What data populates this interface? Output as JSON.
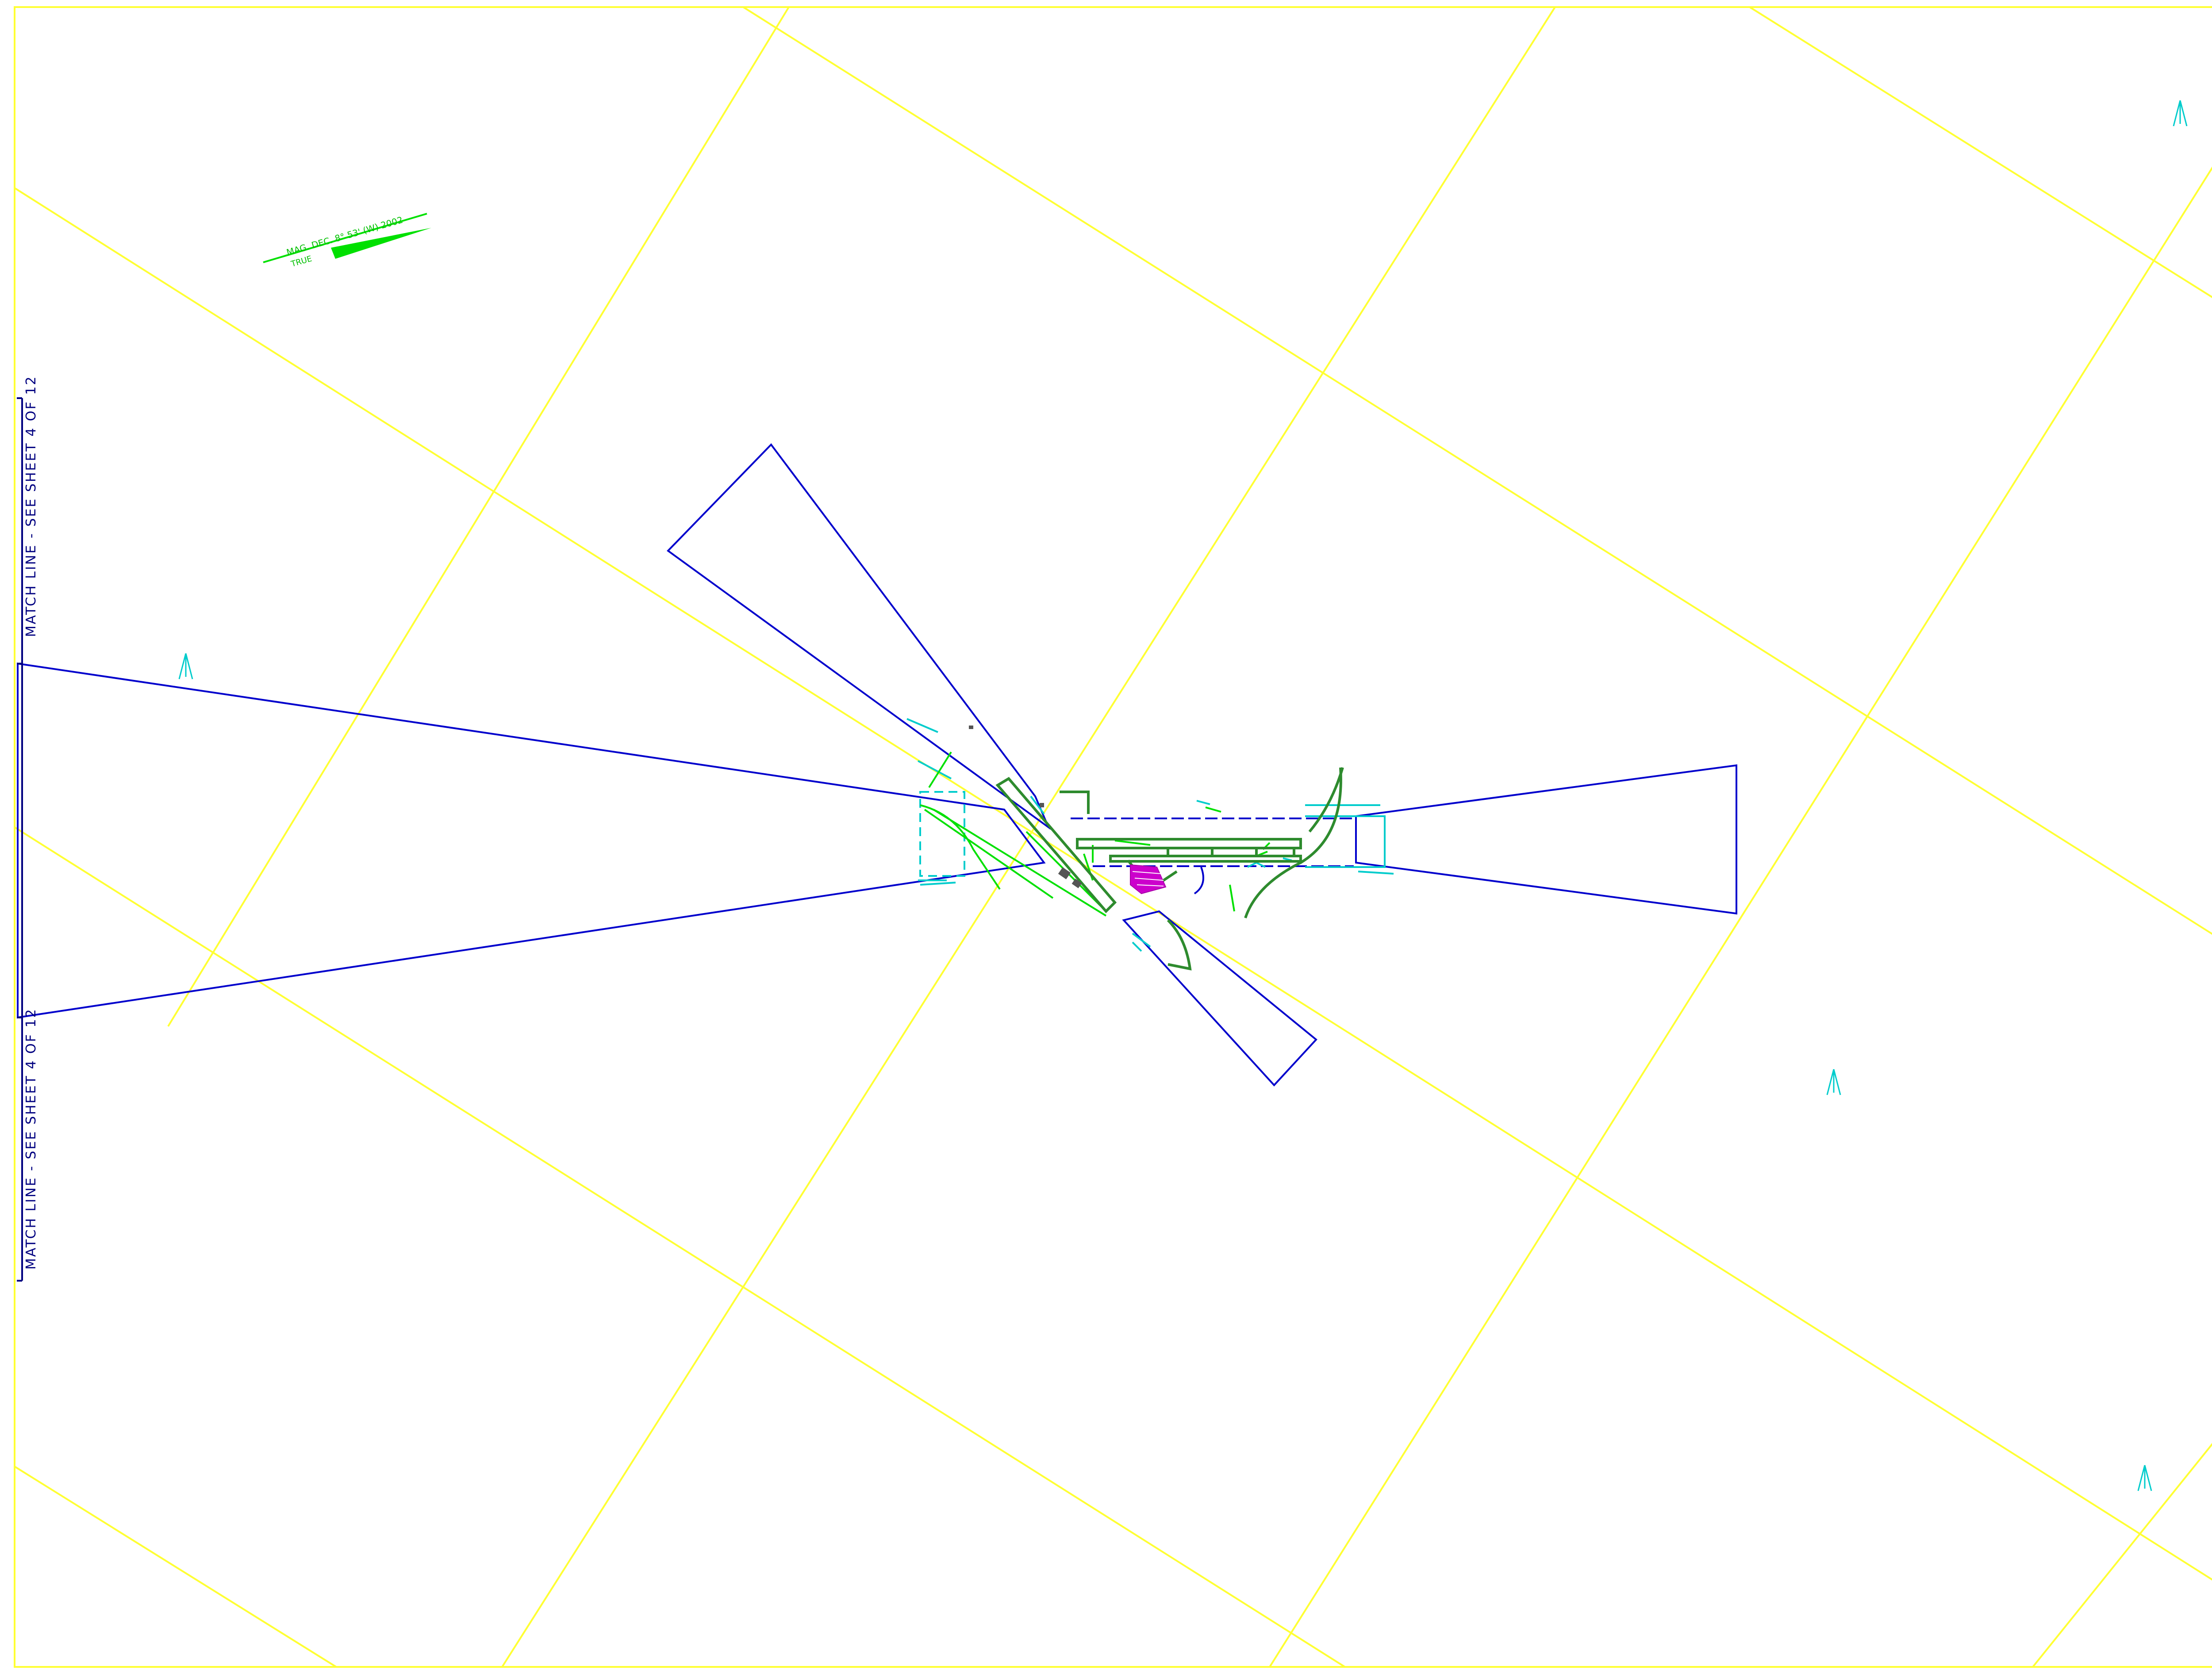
{
  "colors": {
    "background": "#ffffff",
    "grid": "#ffff33",
    "surface": "#0000cc",
    "match_line": "#000080",
    "north_marker": "#00cccc",
    "magnetic": "#00e000",
    "runway": "#2e8b2e",
    "terminal": "#cc00cc"
  },
  "match_lines": {
    "upper": "MATCH LINE - SEE SHEET 4 OF 12",
    "lower": "MATCH LINE - SEE SHEET 4 OF 12"
  },
  "magnetic_declination": {
    "text": "MAG. DEC. 8° 53' (W) 2002",
    "true_label": "TRUE"
  }
}
